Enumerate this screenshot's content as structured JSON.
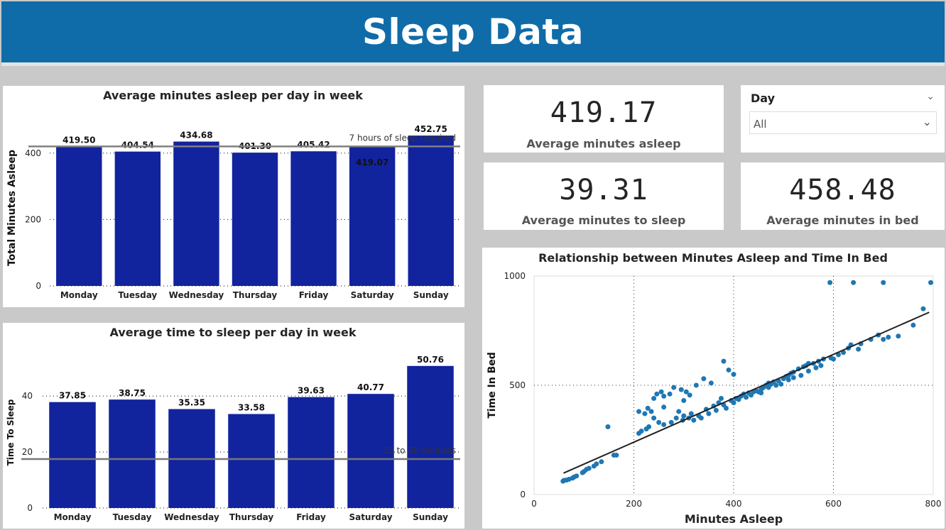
{
  "header": {
    "title": "Sleep Data"
  },
  "kpis": [
    {
      "value": "419.17",
      "label": "Average minutes asleep"
    },
    {
      "value": "39.31",
      "label": "Average minutes to sleep"
    },
    {
      "value": "458.48",
      "label": "Average minutes in bed"
    }
  ],
  "slicer": {
    "title": "Day",
    "selected": "All",
    "chevron": "chevron-down-icon"
  },
  "colors": {
    "header": "#0f6ca8",
    "bar": "#12239e",
    "dot": "#1f77b4",
    "ref_line": "#808080"
  },
  "chart_data": [
    {
      "type": "bar",
      "title": "Average minutes asleep per day in week",
      "ylabel": "Total Minutes Asleep",
      "xlabel": "",
      "categories": [
        "Monday",
        "Tuesday",
        "Wednesday",
        "Thursday",
        "Friday",
        "Saturday",
        "Sunday"
      ],
      "values": [
        419.5,
        404.54,
        434.68,
        401.3,
        405.42,
        419.07,
        452.75
      ],
      "data_labels": [
        "419.50",
        "404.54",
        "434.68",
        "401.30",
        "405.42",
        "419.07",
        "452.75"
      ],
      "yticks": [
        0,
        200,
        400
      ],
      "ylim": [
        0,
        470
      ],
      "reference_line": {
        "value": 420,
        "label": "7 hours of sleep required"
      },
      "grid": true
    },
    {
      "type": "bar",
      "title": "Average time to sleep per day in week",
      "ylabel": "Time To Sleep",
      "xlabel": "",
      "categories": [
        "Monday",
        "Tuesday",
        "Wednesday",
        "Thursday",
        "Friday",
        "Saturday",
        "Sunday"
      ],
      "values": [
        37.85,
        38.75,
        35.35,
        33.58,
        39.63,
        40.77,
        50.76
      ],
      "data_labels": [
        "37.85",
        "38.75",
        "35.35",
        "33.58",
        "39.63",
        "40.77",
        "50.76"
      ],
      "yticks": [
        0,
        20,
        40
      ],
      "ylim": [
        0,
        54
      ],
      "reference_line": {
        "value": 17.5,
        "label": "15 to 20 minutes"
      },
      "grid": true
    },
    {
      "type": "scatter",
      "title": "Relationship between Minutes Asleep and Time In Bed",
      "xlabel": "Minutes Asleep",
      "ylabel": "Time In Bed",
      "xticks": [
        0,
        200,
        400,
        600,
        800
      ],
      "yticks": [
        0,
        500,
        1000
      ],
      "xlim": [
        0,
        800
      ],
      "ylim": [
        0,
        1000
      ],
      "grid": true,
      "trend_line": [
        [
          59,
          98
        ],
        [
          792,
          834
        ]
      ],
      "points": [
        [
          58,
          61
        ],
        [
          60,
          65
        ],
        [
          65,
          66
        ],
        [
          70,
          70
        ],
        [
          77,
          75
        ],
        [
          80,
          80
        ],
        [
          85,
          85
        ],
        [
          97,
          100
        ],
        [
          100,
          105
        ],
        [
          105,
          115
        ],
        [
          110,
          120
        ],
        [
          120,
          130
        ],
        [
          125,
          140
        ],
        [
          135,
          150
        ],
        [
          148,
          310
        ],
        [
          160,
          180
        ],
        [
          165,
          180
        ],
        [
          210,
          280
        ],
        [
          215,
          290
        ],
        [
          225,
          300
        ],
        [
          230,
          310
        ],
        [
          210,
          380
        ],
        [
          222,
          370
        ],
        [
          228,
          395
        ],
        [
          235,
          380
        ],
        [
          240,
          350
        ],
        [
          250,
          330
        ],
        [
          260,
          320
        ],
        [
          275,
          330
        ],
        [
          285,
          350
        ],
        [
          298,
          340
        ],
        [
          240,
          440
        ],
        [
          246,
          460
        ],
        [
          255,
          470
        ],
        [
          260,
          450
        ],
        [
          272,
          460
        ],
        [
          280,
          490
        ],
        [
          295,
          480
        ],
        [
          300,
          430
        ],
        [
          305,
          470
        ],
        [
          312,
          455
        ],
        [
          325,
          500
        ],
        [
          340,
          530
        ],
        [
          355,
          510
        ],
        [
          375,
          440
        ],
        [
          380,
          610
        ],
        [
          390,
          570
        ],
        [
          400,
          550
        ],
        [
          260,
          400
        ],
        [
          290,
          380
        ],
        [
          300,
          360
        ],
        [
          315,
          370
        ],
        [
          330,
          360
        ],
        [
          345,
          390
        ],
        [
          360,
          405
        ],
        [
          370,
          420
        ],
        [
          380,
          410
        ],
        [
          395,
          430
        ],
        [
          405,
          440
        ],
        [
          415,
          450
        ],
        [
          420,
          460
        ],
        [
          430,
          465
        ],
        [
          440,
          470
        ],
        [
          445,
          475
        ],
        [
          455,
          480
        ],
        [
          460,
          490
        ],
        [
          465,
          500
        ],
        [
          470,
          510
        ],
        [
          475,
          505
        ],
        [
          480,
          515
        ],
        [
          490,
          520
        ],
        [
          500,
          530
        ],
        [
          505,
          540
        ],
        [
          510,
          545
        ],
        [
          515,
          555
        ],
        [
          520,
          560
        ],
        [
          530,
          575
        ],
        [
          540,
          585
        ],
        [
          545,
          590
        ],
        [
          550,
          600
        ],
        [
          560,
          600
        ],
        [
          570,
          610
        ],
        [
          310,
          350
        ],
        [
          320,
          340
        ],
        [
          335,
          350
        ],
        [
          350,
          370
        ],
        [
          365,
          385
        ],
        [
          385,
          395
        ],
        [
          400,
          420
        ],
        [
          410,
          435
        ],
        [
          425,
          445
        ],
        [
          435,
          455
        ],
        [
          450,
          470
        ],
        [
          455,
          465
        ],
        [
          470,
          490
        ],
        [
          485,
          500
        ],
        [
          495,
          505
        ],
        [
          510,
          525
        ],
        [
          520,
          535
        ],
        [
          535,
          545
        ],
        [
          550,
          565
        ],
        [
          565,
          580
        ],
        [
          575,
          590
        ],
        [
          580,
          620
        ],
        [
          595,
          625
        ],
        [
          600,
          620
        ],
        [
          610,
          640
        ],
        [
          620,
          650
        ],
        [
          630,
          670
        ],
        [
          635,
          685
        ],
        [
          650,
          665
        ],
        [
          655,
          690
        ],
        [
          675,
          710
        ],
        [
          690,
          730
        ],
        [
          700,
          710
        ],
        [
          710,
          720
        ],
        [
          730,
          725
        ],
        [
          760,
          775
        ],
        [
          780,
          850
        ],
        [
          593,
          970
        ],
        [
          640,
          970
        ],
        [
          700,
          970
        ],
        [
          795,
          970
        ]
      ]
    }
  ]
}
